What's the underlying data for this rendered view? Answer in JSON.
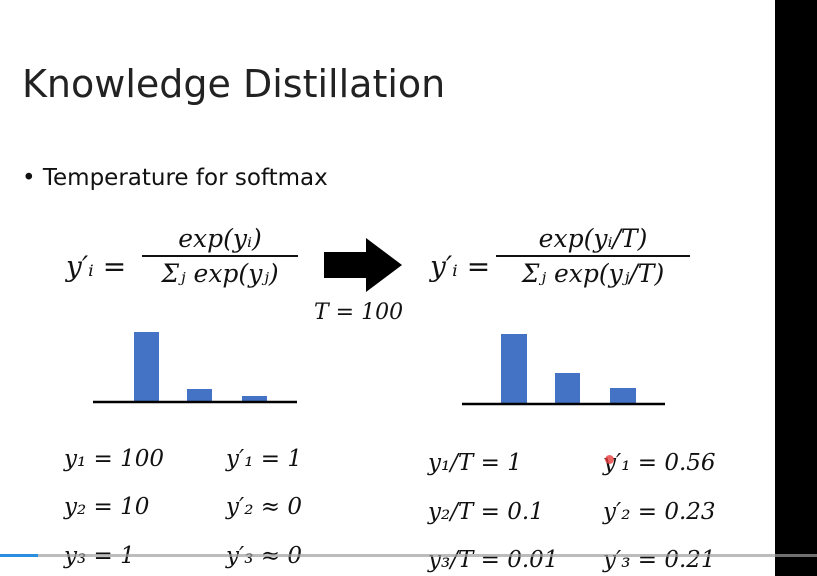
{
  "title": "Knowledge Distillation",
  "bullet": "Temperature for softmax",
  "left_formula": {
    "lhs": "y′ᵢ =",
    "numerator": "exp(yᵢ)",
    "denominator": "Σⱼ exp(yⱼ)"
  },
  "arrow_label": "T = 100",
  "right_formula": {
    "lhs": "y′ᵢ =",
    "numerator": "exp(yᵢ/T)",
    "denominator": "Σⱼ exp(yⱼ/T)"
  },
  "left_table": [
    [
      "y₁ = 100",
      "y′₁ = 1"
    ],
    [
      "y₂ = 10",
      "y′₂ ≈ 0"
    ],
    [
      "y₃ = 1",
      "y′₃ ≈ 0"
    ]
  ],
  "right_table": [
    [
      "y₁/T = 1",
      "y′₁ = 0.56"
    ],
    [
      "y₂/T = 0.1",
      "y′₂ = 0.23"
    ],
    [
      "y₃/T = 0.01",
      "y′₃ = 0.21"
    ]
  ]
}
